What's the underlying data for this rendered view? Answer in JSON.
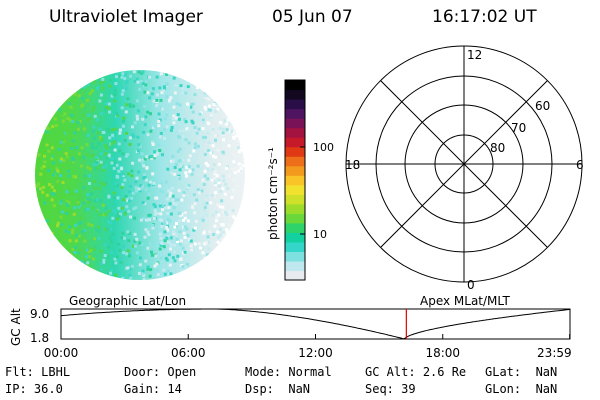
{
  "header": {
    "instrument": "Ultraviolet Imager",
    "date": "05 Jun 07",
    "time": "16:17:02 UT"
  },
  "colorbar": {
    "unit_label": "photon cm⁻²s⁻¹",
    "ticks": [
      {
        "label": "100",
        "value": 100
      },
      {
        "label": "10",
        "value": 10
      }
    ],
    "colors": [
      "#e8ecf0",
      "#bfe9ee",
      "#7fe0e0",
      "#33d6c8",
      "#12d0a0",
      "#2ed36a",
      "#6ad83a",
      "#9edc2c",
      "#cfe02a",
      "#f2e230",
      "#f8c428",
      "#f39a1e",
      "#ee6f1a",
      "#e03a14",
      "#c61a2a",
      "#a41240",
      "#7a1258",
      "#4e1460",
      "#2a0e48",
      "#120820",
      "#000000"
    ]
  },
  "polar": {
    "mlt_labels": {
      "top": "12",
      "bottom": "0",
      "left": "18",
      "right": "6"
    },
    "lat_labels": [
      "60",
      "70",
      "80"
    ]
  },
  "timeline": {
    "left_label": "Geographic Lat/Lon",
    "right_label": "Apex MLat/MLT",
    "axis_name": "GC Alt",
    "y_max_label": "9.0",
    "y_min_label": "1.8",
    "x_ticks": [
      "00:00",
      "06:00",
      "12:00",
      "18:00",
      "23:59"
    ],
    "current_time_marker": "16:17",
    "marker_color": "#e00000"
  },
  "status": {
    "row1": [
      {
        "label": "Flt:",
        "value": "LBHL"
      },
      {
        "label": "Door:",
        "value": "Open"
      },
      {
        "label": "Mode:",
        "value": "Normal"
      },
      {
        "label": "GC Alt:",
        "value": "2.6 Re"
      },
      {
        "label": "GLat:",
        "value": "NaN"
      }
    ],
    "row2": [
      {
        "label": "IP:",
        "value": "36.0"
      },
      {
        "label": "Gain:",
        "value": "14"
      },
      {
        "label": "Dsp:",
        "value": "NaN"
      },
      {
        "label": "Seq:",
        "value": "39"
      },
      {
        "label": "GLon:",
        "value": "NaN"
      }
    ]
  }
}
